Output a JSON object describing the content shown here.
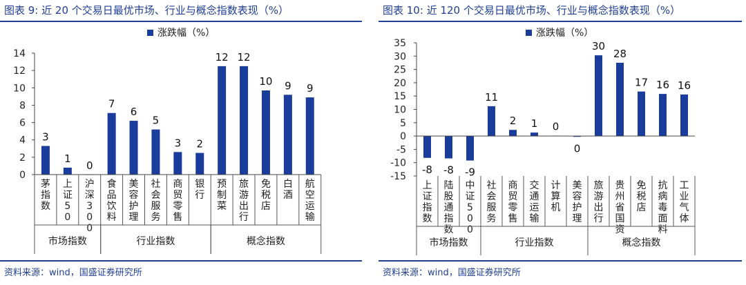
{
  "charts": [
    {
      "title_prefix": "图表 9:",
      "title_main": "近 20 个交易日最优市场、行业与概念指数表现（%）",
      "source": "资料来源：wind，国盛证券研究所",
      "bar_color": "#1a3c9a",
      "chart_data": {
        "type": "bar",
        "title": "近 20 个交易日最优市场、行业与概念指数表现（%）",
        "legend": "涨跌幅（%）",
        "legend_position": "top-center",
        "ylim": [
          0,
          14
        ],
        "yticks": [
          "14",
          "12",
          "10",
          "8",
          "6",
          "4",
          "2",
          "0"
        ],
        "categories": [
          "茅指数",
          "上证50",
          "沪深300",
          "食品饮料",
          "美容护理",
          "社会服务",
          "商贸零售",
          "银行",
          "预制菜",
          "旅游出行",
          "免税店",
          "白酒",
          "航空运输"
        ],
        "category_chars": [
          [
            "茅",
            "指",
            "数"
          ],
          [
            "上",
            "证",
            "5",
            "0"
          ],
          [
            "沪",
            "深",
            "3",
            "0",
            "0"
          ],
          [
            "食",
            "品",
            "饮",
            "料"
          ],
          [
            "美",
            "容",
            "护",
            "理"
          ],
          [
            "社",
            "会",
            "服",
            "务"
          ],
          [
            "商",
            "贸",
            "零",
            "售"
          ],
          [
            "银",
            "行"
          ],
          [
            "预",
            "制",
            "菜"
          ],
          [
            "旅",
            "游",
            "出",
            "行"
          ],
          [
            "免",
            "税",
            "店"
          ],
          [
            "白",
            "酒"
          ],
          [
            "航",
            "空",
            "运",
            "输"
          ]
        ],
        "values": [
          3.3,
          0.8,
          0.0,
          7.1,
          6.2,
          5.2,
          2.6,
          2.5,
          12.5,
          12.5,
          9.7,
          9.2,
          8.9
        ],
        "data_labels": [
          "3",
          "1",
          "0",
          "7",
          "6",
          "5",
          "3",
          "2",
          "12",
          "12",
          "10",
          "9",
          "9"
        ],
        "groups": [
          {
            "label": "市场指数",
            "start": 0,
            "end": 2
          },
          {
            "label": "行业指数",
            "start": 3,
            "end": 7
          },
          {
            "label": "概念指数",
            "start": 8,
            "end": 12
          }
        ]
      }
    },
    {
      "title_prefix": "图表 10:",
      "title_main": "近 120 个交易日最优市场、行业与概念指数表现（%）",
      "source": "资料来源：wind，国盛证券研究所",
      "bar_color": "#1a3c9a",
      "chart_data": {
        "type": "bar",
        "title": "近 120 个交易日最优市场、行业与概念指数表现（%）",
        "legend": "涨跌幅（%）",
        "legend_position": "top-center",
        "ylim": [
          -15,
          35
        ],
        "yticks": [
          "35",
          "30",
          "25",
          "20",
          "15",
          "10",
          "5",
          "0",
          "-5",
          "-10",
          "-15"
        ],
        "categories": [
          "上证指数",
          "陆股通指数",
          "中证500",
          "社会服务",
          "商贸零售",
          "交通运输",
          "计算机",
          "美容护理",
          "旅游出行",
          "贵州省国资",
          "免税店",
          "抗病毒面料",
          "工业气体"
        ],
        "category_chars": [
          [
            "上",
            "证",
            "指",
            "数"
          ],
          [
            "陆",
            "股",
            "通",
            "指",
            "数"
          ],
          [
            "中",
            "证",
            "5",
            "0",
            "0"
          ],
          [
            "社",
            "会",
            "服",
            "务"
          ],
          [
            "商",
            "贸",
            "零",
            "售"
          ],
          [
            "交",
            "通",
            "运",
            "输"
          ],
          [
            "计",
            "算",
            "机"
          ],
          [
            "美",
            "容",
            "护",
            "理"
          ],
          [
            "旅",
            "游",
            "出",
            "行"
          ],
          [
            "贵",
            "州",
            "省",
            "国",
            "资"
          ],
          [
            "免",
            "税",
            "店"
          ],
          [
            "抗",
            "病",
            "毒",
            "面",
            "料"
          ],
          [
            "工",
            "业",
            "气",
            "体"
          ]
        ],
        "values": [
          -8.2,
          -8.4,
          -9.2,
          11.2,
          2.3,
          1.3,
          0.1,
          -0.3,
          30.3,
          27.5,
          16.7,
          15.8,
          15.6
        ],
        "data_labels": [
          "-8",
          "-8",
          "-9",
          "11",
          "2",
          "1",
          "0",
          "0",
          "30",
          "28",
          "17",
          "16",
          "16"
        ],
        "groups": [
          {
            "label": "市场指数",
            "start": 0,
            "end": 2
          },
          {
            "label": "行业指数",
            "start": 3,
            "end": 7
          },
          {
            "label": "概念指数",
            "start": 8,
            "end": 12
          }
        ]
      }
    }
  ]
}
